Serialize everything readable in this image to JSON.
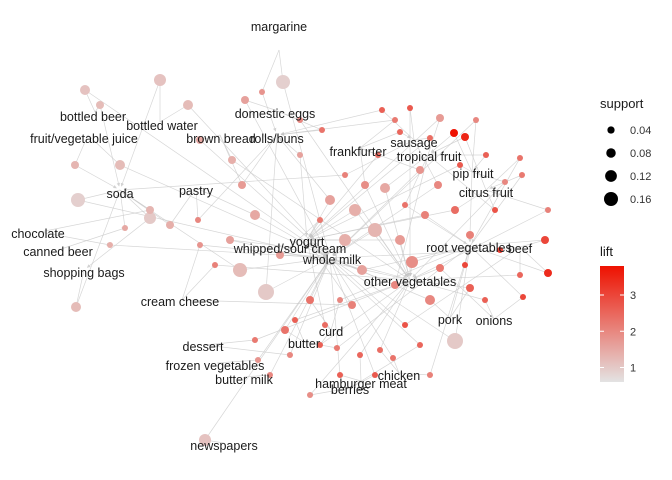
{
  "graph": {
    "items": [
      {
        "id": "margarine",
        "label": "margarine"
      },
      {
        "id": "domestic_eggs",
        "label": "domestic eggs"
      },
      {
        "id": "bottled_beer",
        "label": "bottled beer"
      },
      {
        "id": "bottled_water",
        "label": "bottled water"
      },
      {
        "id": "fruit_vegetable_juice",
        "label": "fruit/vegetable juice"
      },
      {
        "id": "brown_bread",
        "label": "brown bread"
      },
      {
        "id": "rolls_buns",
        "label": "rolls/buns"
      },
      {
        "id": "sausage",
        "label": "sausage"
      },
      {
        "id": "frankfurter",
        "label": "frankfurter"
      },
      {
        "id": "tropical_fruit",
        "label": "tropical fruit"
      },
      {
        "id": "pip_fruit",
        "label": "pip fruit"
      },
      {
        "id": "citrus_fruit",
        "label": "citrus fruit"
      },
      {
        "id": "soda",
        "label": "soda"
      },
      {
        "id": "pastry",
        "label": "pastry"
      },
      {
        "id": "chocolate",
        "label": "chocolate"
      },
      {
        "id": "canned_beer",
        "label": "canned beer"
      },
      {
        "id": "shopping_bags",
        "label": "shopping bags"
      },
      {
        "id": "yogurt",
        "label": "yogurt"
      },
      {
        "id": "whipped_sour_cream",
        "label": "whipped/sour cream"
      },
      {
        "id": "whole_milk",
        "label": "whole milk"
      },
      {
        "id": "root_vegetables",
        "label": "root vegetables"
      },
      {
        "id": "beef",
        "label": "beef"
      },
      {
        "id": "other_vegetables",
        "label": "other vegetables"
      },
      {
        "id": "cream_cheese",
        "label": "cream cheese"
      },
      {
        "id": "pork",
        "label": "pork"
      },
      {
        "id": "onions",
        "label": "onions"
      },
      {
        "id": "curd",
        "label": "curd"
      },
      {
        "id": "dessert",
        "label": "dessert"
      },
      {
        "id": "butter",
        "label": "butter"
      },
      {
        "id": "frozen_vegetables",
        "label": "frozen vegetables"
      },
      {
        "id": "chicken",
        "label": "chicken"
      },
      {
        "id": "butter_milk",
        "label": "butter milk"
      },
      {
        "id": "hamburger_meat",
        "label": "hamburger meat"
      },
      {
        "id": "berries",
        "label": "berries"
      },
      {
        "id": "newspapers",
        "label": "newspapers"
      }
    ]
  },
  "legend": {
    "support": {
      "title": "support",
      "entries": [
        {
          "label": "0.04",
          "value": 0.04
        },
        {
          "label": "0.08",
          "value": 0.08
        },
        {
          "label": "0.12",
          "value": 0.12
        },
        {
          "label": "0.16",
          "value": 0.16
        }
      ]
    },
    "lift": {
      "title": "lift",
      "ticks": [
        {
          "label": "3",
          "value": 3
        },
        {
          "label": "2",
          "value": 2
        },
        {
          "label": "1",
          "value": 1
        }
      ],
      "range": [
        0.6,
        3.8
      ],
      "colors": {
        "low": "#e3e3e3",
        "high": "#ee1100"
      }
    }
  }
}
